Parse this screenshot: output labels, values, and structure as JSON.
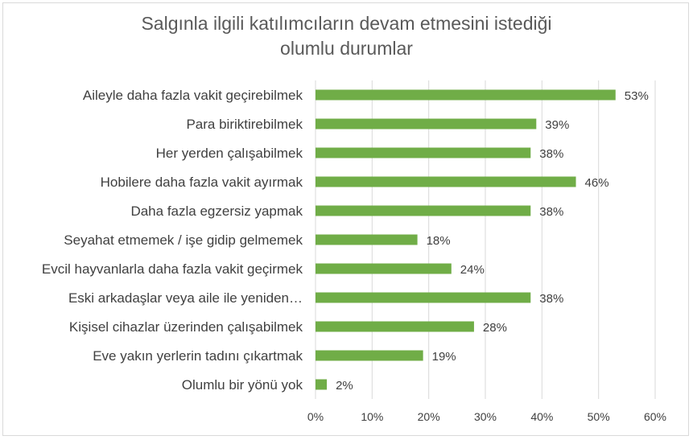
{
  "chart_data": {
    "type": "bar",
    "orientation": "horizontal",
    "title_lines": [
      "Salgınla ilgili katılımcıların devam etmesini istediği",
      "olumlu durumlar"
    ],
    "categories": [
      "Aileyle daha fazla vakit geçirebilmek",
      "Para biriktirebilmek",
      "Her yerden çalışabilmek",
      "Hobilere daha fazla vakit ayırmak",
      "Daha fazla egzersiz yapmak",
      "Seyahat etmemek / işe gidip gelmemek",
      "Evcil hayvanlarla daha fazla vakit geçirmek",
      "Eski arkadaşlar veya aile ile yeniden…",
      "Kişisel cihazlar üzerinden çalışabilmek",
      "Eve yakın yerlerin tadını çıkartmak",
      "Olumlu bir yönü yok"
    ],
    "values": [
      53,
      39,
      38,
      46,
      38,
      18,
      24,
      38,
      28,
      19,
      2
    ],
    "data_labels": [
      "53%",
      "39%",
      "38%",
      "46%",
      "38%",
      "18%",
      "24%",
      "38%",
      "28%",
      "19%",
      "2%"
    ],
    "x_ticks": [
      0,
      10,
      20,
      30,
      40,
      50,
      60
    ],
    "x_tick_labels": [
      "0%",
      "10%",
      "20%",
      "30%",
      "40%",
      "50%",
      "60%"
    ],
    "xlim": [
      0,
      60
    ],
    "grid": true,
    "legend": "none",
    "bar_color": "#70ad47",
    "grid_color": "#d9d9d9",
    "text_color": "#404040"
  }
}
